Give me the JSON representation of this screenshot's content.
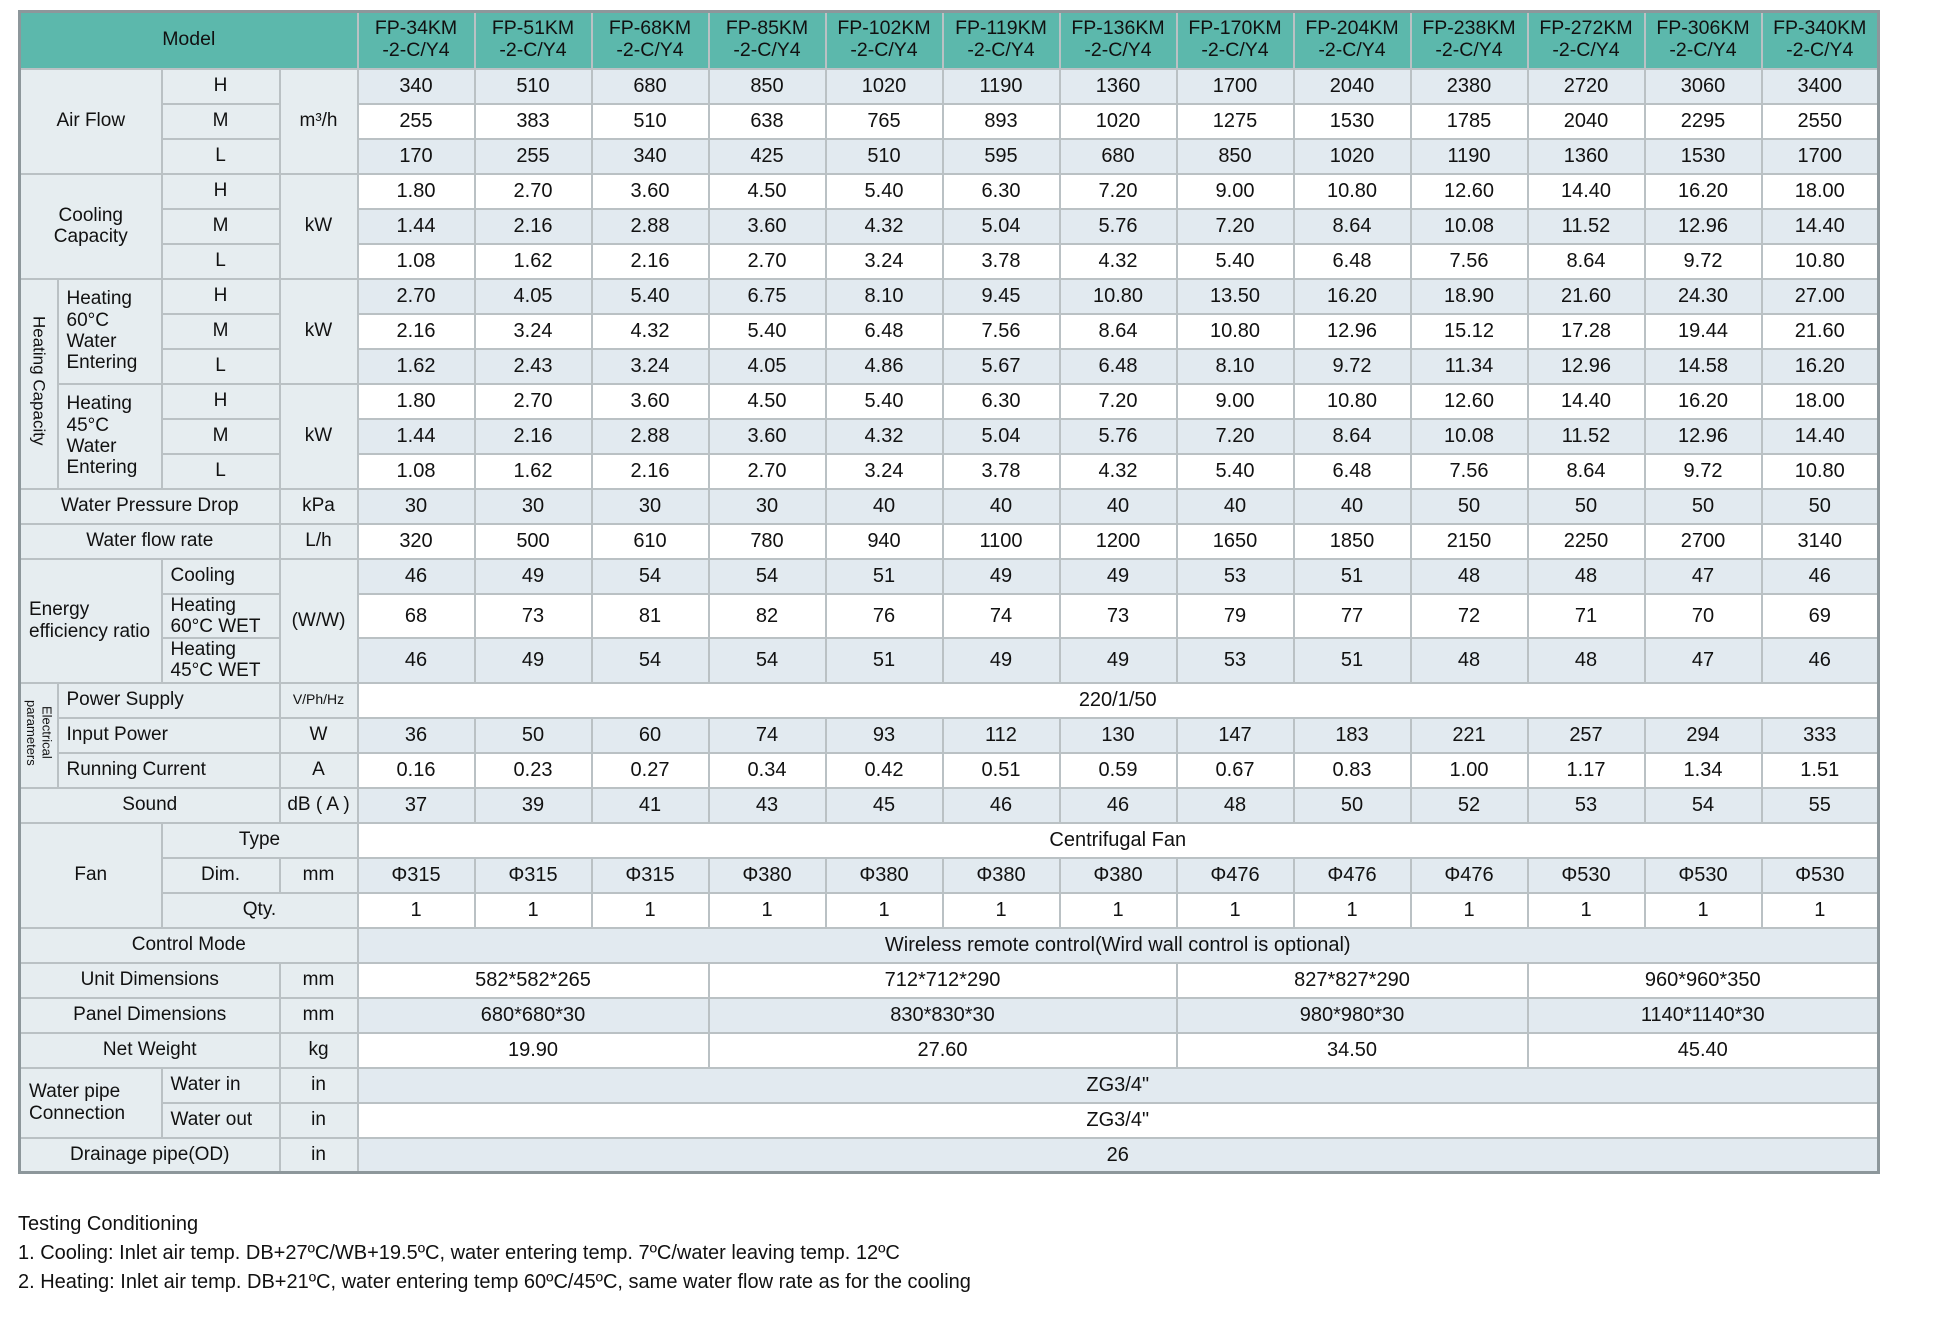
{
  "colors": {
    "header_teal": "#5cb8ac",
    "cell_label": "#e6edf0",
    "cell_light": "#e2eaf0",
    "cell_white": "#ffffff",
    "grid_border": "#bac1c4",
    "outer_border": "#8d979b"
  },
  "table": {
    "corner_label": "Model",
    "models": [
      [
        "FP-34KM",
        "-2-C/Y4"
      ],
      [
        "FP-51KM",
        "-2-C/Y4"
      ],
      [
        "FP-68KM",
        "-2-C/Y4"
      ],
      [
        "FP-85KM",
        "-2-C/Y4"
      ],
      [
        "FP-102KM",
        "-2-C/Y4"
      ],
      [
        "FP-119KM",
        "-2-C/Y4"
      ],
      [
        "FP-136KM",
        "-2-C/Y4"
      ],
      [
        "FP-170KM",
        "-2-C/Y4"
      ],
      [
        "FP-204KM",
        "-2-C/Y4"
      ],
      [
        "FP-238KM",
        "-2-C/Y4"
      ],
      [
        "FP-272KM",
        "-2-C/Y4"
      ],
      [
        "FP-306KM",
        "-2-C/Y4"
      ],
      [
        "FP-340KM",
        "-2-C/Y4"
      ]
    ],
    "rows": [
      {
        "shade": "light",
        "labels": [
          {
            "t": "Air Flow",
            "cs": 2,
            "rs": 3
          },
          {
            "t": "H"
          },
          {
            "t": "m³/h",
            "rs": 3,
            "unit": true
          }
        ],
        "values": {
          "mode": "cells",
          "v": [
            "340",
            "510",
            "680",
            "850",
            "1020",
            "1190",
            "1360",
            "1700",
            "2040",
            "2380",
            "2720",
            "3060",
            "3400"
          ]
        }
      },
      {
        "shade": "white",
        "labels": [
          {
            "t": "M"
          }
        ],
        "values": {
          "mode": "cells",
          "v": [
            "255",
            "383",
            "510",
            "638",
            "765",
            "893",
            "1020",
            "1275",
            "1530",
            "1785",
            "2040",
            "2295",
            "2550"
          ]
        }
      },
      {
        "shade": "light",
        "labels": [
          {
            "t": "L"
          }
        ],
        "values": {
          "mode": "cells",
          "v": [
            "170",
            "255",
            "340",
            "425",
            "510",
            "595",
            "680",
            "850",
            "1020",
            "1190",
            "1360",
            "1530",
            "1700"
          ]
        }
      },
      {
        "shade": "white",
        "labels": [
          {
            "t": "Cooling Capacity",
            "cs": 2,
            "rs": 3
          },
          {
            "t": "H"
          },
          {
            "t": "kW",
            "rs": 3,
            "unit": true
          }
        ],
        "values": {
          "mode": "cells",
          "v": [
            "1.80",
            "2.70",
            "3.60",
            "4.50",
            "5.40",
            "6.30",
            "7.20",
            "9.00",
            "10.80",
            "12.60",
            "14.40",
            "16.20",
            "18.00"
          ]
        }
      },
      {
        "shade": "light",
        "labels": [
          {
            "t": "M"
          }
        ],
        "values": {
          "mode": "cells",
          "v": [
            "1.44",
            "2.16",
            "2.88",
            "3.60",
            "4.32",
            "5.04",
            "5.76",
            "7.20",
            "8.64",
            "10.08",
            "11.52",
            "12.96",
            "14.40"
          ]
        }
      },
      {
        "shade": "white",
        "labels": [
          {
            "t": "L"
          }
        ],
        "values": {
          "mode": "cells",
          "v": [
            "1.08",
            "1.62",
            "2.16",
            "2.70",
            "3.24",
            "3.78",
            "4.32",
            "5.40",
            "6.48",
            "7.56",
            "8.64",
            "9.72",
            "10.80"
          ]
        }
      },
      {
        "shade": "light",
        "labels": [
          {
            "t": "Heating Capacity",
            "vert": true,
            "rs": 6
          },
          {
            "t": "Heating 60°C Water Entering",
            "rs": 3,
            "left": true
          },
          {
            "t": "H"
          },
          {
            "t": "kW",
            "rs": 3,
            "unit": true
          }
        ],
        "values": {
          "mode": "cells",
          "v": [
            "2.70",
            "4.05",
            "5.40",
            "6.75",
            "8.10",
            "9.45",
            "10.80",
            "13.50",
            "16.20",
            "18.90",
            "21.60",
            "24.30",
            "27.00"
          ]
        }
      },
      {
        "shade": "white",
        "labels": [
          {
            "t": "M"
          }
        ],
        "values": {
          "mode": "cells",
          "v": [
            "2.16",
            "3.24",
            "4.32",
            "5.40",
            "6.48",
            "7.56",
            "8.64",
            "10.80",
            "12.96",
            "15.12",
            "17.28",
            "19.44",
            "21.60"
          ]
        }
      },
      {
        "shade": "light",
        "labels": [
          {
            "t": "L"
          }
        ],
        "values": {
          "mode": "cells",
          "v": [
            "1.62",
            "2.43",
            "3.24",
            "4.05",
            "4.86",
            "5.67",
            "6.48",
            "8.10",
            "9.72",
            "11.34",
            "12.96",
            "14.58",
            "16.20"
          ]
        }
      },
      {
        "shade": "white",
        "labels": [
          {
            "t": "Heating 45°C Water Entering",
            "rs": 3,
            "left": true
          },
          {
            "t": "H"
          },
          {
            "t": "kW",
            "rs": 3,
            "unit": true
          }
        ],
        "values": {
          "mode": "cells",
          "v": [
            "1.80",
            "2.70",
            "3.60",
            "4.50",
            "5.40",
            "6.30",
            "7.20",
            "9.00",
            "10.80",
            "12.60",
            "14.40",
            "16.20",
            "18.00"
          ]
        }
      },
      {
        "shade": "light",
        "labels": [
          {
            "t": "M"
          }
        ],
        "values": {
          "mode": "cells",
          "v": [
            "1.44",
            "2.16",
            "2.88",
            "3.60",
            "4.32",
            "5.04",
            "5.76",
            "7.20",
            "8.64",
            "10.08",
            "11.52",
            "12.96",
            "14.40"
          ]
        }
      },
      {
        "shade": "white",
        "labels": [
          {
            "t": "L"
          }
        ],
        "values": {
          "mode": "cells",
          "v": [
            "1.08",
            "1.62",
            "2.16",
            "2.70",
            "3.24",
            "3.78",
            "4.32",
            "5.40",
            "6.48",
            "7.56",
            "8.64",
            "9.72",
            "10.80"
          ]
        }
      },
      {
        "shade": "light",
        "labels": [
          {
            "t": "Water Pressure Drop",
            "cs": 3
          },
          {
            "t": "kPa",
            "unit": true
          }
        ],
        "values": {
          "mode": "cells",
          "v": [
            "30",
            "30",
            "30",
            "30",
            "40",
            "40",
            "40",
            "40",
            "40",
            "50",
            "50",
            "50",
            "50"
          ]
        }
      },
      {
        "shade": "white",
        "labels": [
          {
            "t": "Water flow rate",
            "cs": 3
          },
          {
            "t": "L/h",
            "unit": true
          }
        ],
        "values": {
          "mode": "cells",
          "v": [
            "320",
            "500",
            "610",
            "780",
            "940",
            "1100",
            "1200",
            "1650",
            "1850",
            "2150",
            "2250",
            "2700",
            "3140"
          ]
        }
      },
      {
        "shade": "light",
        "labels": [
          {
            "t": "Energy efficiency ratio",
            "cs": 2,
            "rs": 3,
            "left": true
          },
          {
            "t": "Cooling",
            "sm": true,
            "left": true
          },
          {
            "t": "(W/W)",
            "rs": 3,
            "unit": true
          }
        ],
        "values": {
          "mode": "cells",
          "v": [
            "46",
            "49",
            "54",
            "54",
            "51",
            "49",
            "49",
            "53",
            "51",
            "48",
            "48",
            "47",
            "46"
          ]
        }
      },
      {
        "shade": "white",
        "labels": [
          {
            "t": "Heating 60°C WET",
            "sm": true,
            "left": true
          }
        ],
        "values": {
          "mode": "cells",
          "v": [
            "68",
            "73",
            "81",
            "82",
            "76",
            "74",
            "73",
            "79",
            "77",
            "72",
            "71",
            "70",
            "69"
          ]
        }
      },
      {
        "shade": "light",
        "labels": [
          {
            "t": "Heating 45°C WET",
            "sm": true,
            "left": true
          }
        ],
        "values": {
          "mode": "cells",
          "v": [
            "46",
            "49",
            "54",
            "54",
            "51",
            "49",
            "49",
            "53",
            "51",
            "48",
            "48",
            "47",
            "46"
          ]
        }
      },
      {
        "shade": "white",
        "labels": [
          {
            "t": "Electrical parameters",
            "vert": true,
            "rs": 3,
            "sm": true
          },
          {
            "t": "Power Supply",
            "cs": 2,
            "left": true
          },
          {
            "t": "V/Ph/Hz",
            "unit": true,
            "sm": true
          }
        ],
        "values": {
          "mode": "span",
          "v": "220/1/50"
        }
      },
      {
        "shade": "light",
        "labels": [
          {
            "t": "Input Power",
            "cs": 2,
            "left": true
          },
          {
            "t": "W",
            "unit": true
          }
        ],
        "values": {
          "mode": "cells",
          "v": [
            "36",
            "50",
            "60",
            "74",
            "93",
            "112",
            "130",
            "147",
            "183",
            "221",
            "257",
            "294",
            "333"
          ]
        }
      },
      {
        "shade": "white",
        "labels": [
          {
            "t": "Running Current",
            "cs": 2,
            "left": true
          },
          {
            "t": "A",
            "unit": true
          }
        ],
        "values": {
          "mode": "cells",
          "v": [
            "0.16",
            "0.23",
            "0.27",
            "0.34",
            "0.42",
            "0.51",
            "0.59",
            "0.67",
            "0.83",
            "1.00",
            "1.17",
            "1.34",
            "1.51"
          ]
        }
      },
      {
        "shade": "light",
        "labels": [
          {
            "t": "Sound",
            "cs": 3
          },
          {
            "t": "dB ( A )",
            "unit": true
          }
        ],
        "values": {
          "mode": "cells",
          "v": [
            "37",
            "39",
            "41",
            "43",
            "45",
            "46",
            "46",
            "48",
            "50",
            "52",
            "53",
            "54",
            "55"
          ]
        }
      },
      {
        "shade": "white",
        "labels": [
          {
            "t": "Fan",
            "cs": 2,
            "rs": 3
          },
          {
            "t": "Type",
            "cs": 2
          }
        ],
        "values": {
          "mode": "span",
          "v": "Centrifugal Fan"
        }
      },
      {
        "shade": "light",
        "labels": [
          {
            "t": "Dim."
          },
          {
            "t": "mm",
            "unit": true
          }
        ],
        "values": {
          "mode": "cells",
          "v": [
            "Φ315",
            "Φ315",
            "Φ315",
            "Φ380",
            "Φ380",
            "Φ380",
            "Φ380",
            "Φ476",
            "Φ476",
            "Φ476",
            "Φ530",
            "Φ530",
            "Φ530"
          ]
        }
      },
      {
        "shade": "white",
        "labels": [
          {
            "t": "Qty.",
            "cs": 2
          }
        ],
        "values": {
          "mode": "cells",
          "v": [
            "1",
            "1",
            "1",
            "1",
            "1",
            "1",
            "1",
            "1",
            "1",
            "1",
            "1",
            "1",
            "1"
          ]
        }
      },
      {
        "shade": "light",
        "labels": [
          {
            "t": "Control Mode",
            "cs": 4
          }
        ],
        "values": {
          "mode": "span",
          "v": "Wireless remote control(Wird wall control is optional)"
        }
      },
      {
        "shade": "white",
        "labels": [
          {
            "t": "Unit Dimensions",
            "cs": 3
          },
          {
            "t": "mm",
            "unit": true
          }
        ],
        "values": {
          "mode": "groups",
          "v": [
            {
              "t": "582*582*265",
              "s": 3
            },
            {
              "t": "712*712*290",
              "s": 4
            },
            {
              "t": "827*827*290",
              "s": 3
            },
            {
              "t": "960*960*350",
              "s": 3
            }
          ]
        }
      },
      {
        "shade": "light",
        "labels": [
          {
            "t": "Panel Dimensions",
            "cs": 3
          },
          {
            "t": "mm",
            "unit": true
          }
        ],
        "values": {
          "mode": "groups",
          "v": [
            {
              "t": "680*680*30",
              "s": 3
            },
            {
              "t": "830*830*30",
              "s": 4
            },
            {
              "t": "980*980*30",
              "s": 3
            },
            {
              "t": "1140*1140*30",
              "s": 3
            }
          ]
        }
      },
      {
        "shade": "white",
        "labels": [
          {
            "t": "Net Weight",
            "cs": 3
          },
          {
            "t": "kg",
            "unit": true
          }
        ],
        "values": {
          "mode": "groups",
          "v": [
            {
              "t": "19.90",
              "s": 3
            },
            {
              "t": "27.60",
              "s": 4
            },
            {
              "t": "34.50",
              "s": 3
            },
            {
              "t": "45.40",
              "s": 3
            }
          ]
        }
      },
      {
        "shade": "light",
        "labels": [
          {
            "t": "Water pipe Connection",
            "cs": 2,
            "rs": 2,
            "left": true
          },
          {
            "t": "Water in",
            "left": true
          },
          {
            "t": "in",
            "unit": true
          }
        ],
        "values": {
          "mode": "span",
          "v": "ZG3/4\""
        }
      },
      {
        "shade": "white",
        "labels": [
          {
            "t": "Water out",
            "left": true
          },
          {
            "t": "in",
            "unit": true
          }
        ],
        "values": {
          "mode": "span",
          "v": "ZG3/4\""
        }
      },
      {
        "shade": "light",
        "labels": [
          {
            "t": "Drainage pipe(OD)",
            "cs": 3
          },
          {
            "t": "in",
            "unit": true
          }
        ],
        "values": {
          "mode": "span",
          "v": "26"
        }
      }
    ]
  },
  "notes": {
    "title": "Testing Conditioning",
    "line1": "1. Cooling: Inlet air temp. DB+27ºC/WB+19.5ºC, water entering temp. 7ºC/water leaving temp. 12ºC",
    "line2": "2. Heating: Inlet air temp. DB+21ºC, water entering temp 60ºC/45ºC, same water flow rate as for the cooling"
  }
}
